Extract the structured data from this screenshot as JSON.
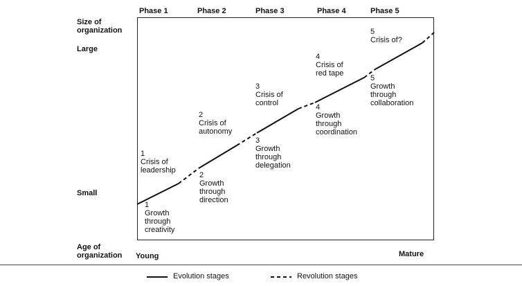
{
  "phases": [
    "Phase 1",
    "Phase 2",
    "Phase 3",
    "Phase 4",
    "Phase 5"
  ],
  "y_axis": {
    "title_line1": "Size of",
    "title_line2": "organization",
    "large_label": "Large",
    "small_label": "Small"
  },
  "x_axis": {
    "title_line1": "Age of",
    "title_line2": "organization",
    "young_label": "Young",
    "mature_label": "Mature"
  },
  "stages": {
    "growth_1": "1\nGrowth\nthrough\ncreativity",
    "crisis_1": "1\nCrisis of\nleadership",
    "growth_2": "2\nGrowth\nthrough\ndirection",
    "crisis_2": "2\nCrisis of\nautonomy",
    "growth_3": "3\nGrowth\nthrough\ndelegation",
    "crisis_3": "3\nCrisis of\ncontrol",
    "growth_4": "4\nGrowth\nthrough\ncoordination",
    "crisis_4": "4\nCrisis of\nred tape",
    "growth_5": "5\nGrowth\nthrough\ncollaboration",
    "crisis_5": "5\nCrisis of?"
  },
  "legend": {
    "evolution": "Evolution stages",
    "revolution": "Revolution stages"
  }
}
